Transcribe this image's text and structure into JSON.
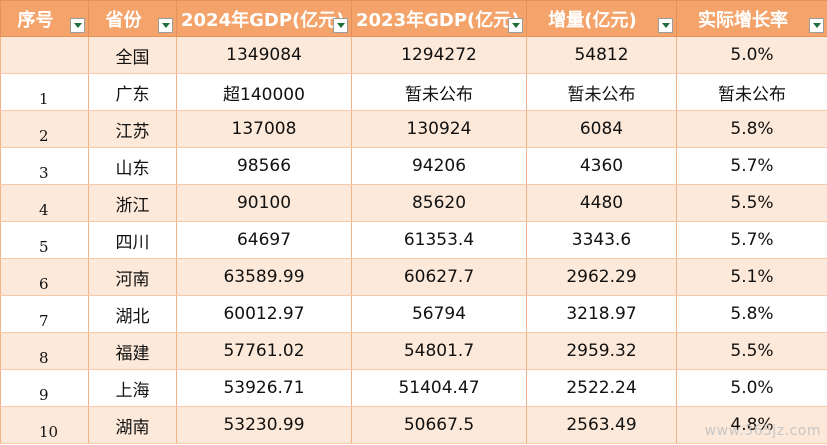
{
  "headers": [
    "序号",
    "省份",
    "2024年GDP(亿元)",
    "2023年GDP(亿元)",
    "增量(亿元)",
    "实际增长率"
  ],
  "rows": [
    {
      "seq": "",
      "province": "全国",
      "gdp2024": "1349084",
      "gdp2023": "1294272",
      "increment": "54812",
      "growth": "5.0%"
    },
    {
      "seq": "1",
      "province": "广东",
      "gdp2024": "超140000",
      "gdp2023": "暂未公布",
      "increment": "暂未公布",
      "growth": "暂未公布"
    },
    {
      "seq": "2",
      "province": "江苏",
      "gdp2024": "137008",
      "gdp2023": "130924",
      "increment": "6084",
      "growth": "5.8%"
    },
    {
      "seq": "3",
      "province": "山东",
      "gdp2024": "98566",
      "gdp2023": "94206",
      "increment": "4360",
      "growth": "5.7%"
    },
    {
      "seq": "4",
      "province": "浙江",
      "gdp2024": "90100",
      "gdp2023": "85620",
      "increment": "4480",
      "growth": "5.5%"
    },
    {
      "seq": "5",
      "province": "四川",
      "gdp2024": "64697",
      "gdp2023": "61353.4",
      "increment": "3343.6",
      "growth": "5.7%"
    },
    {
      "seq": "6",
      "province": "河南",
      "gdp2024": "63589.99",
      "gdp2023": "60627.7",
      "increment": "2962.29",
      "growth": "5.1%"
    },
    {
      "seq": "7",
      "province": "湖北",
      "gdp2024": "60012.97",
      "gdp2023": "56794",
      "increment": "3218.97",
      "growth": "5.8%"
    },
    {
      "seq": "8",
      "province": "福建",
      "gdp2024": "57761.02",
      "gdp2023": "54801.7",
      "increment": "2959.32",
      "growth": "5.5%"
    },
    {
      "seq": "9",
      "province": "上海",
      "gdp2024": "53926.71",
      "gdp2023": "51404.47",
      "increment": "2522.24",
      "growth": "5.0%"
    },
    {
      "seq": "10",
      "province": "湖南",
      "gdp2024": "53230.99",
      "gdp2023": "50667.5",
      "increment": "2563.49",
      "growth": "4.8%"
    }
  ],
  "watermark": "www.365jz.com",
  "colors": {
    "header_bg": "#f4a46a",
    "band_bg": "#fde9d9",
    "filter_arrow": "#1e6f3a"
  },
  "icons": {
    "filter": "filter-dropdown-icon"
  }
}
